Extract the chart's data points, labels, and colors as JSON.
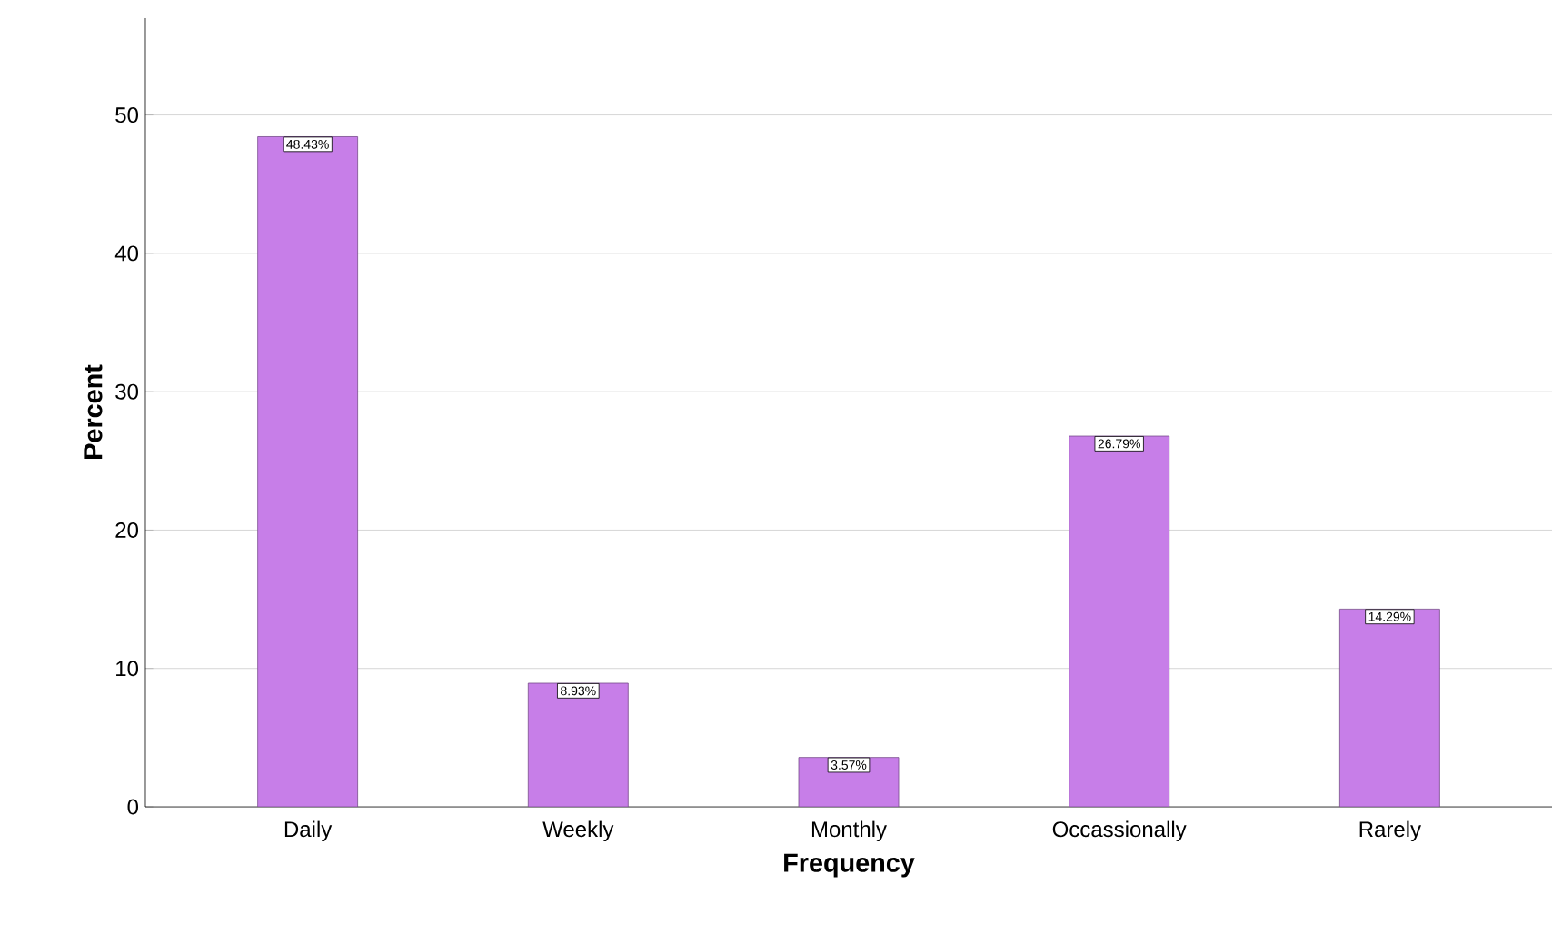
{
  "chart_data": {
    "type": "bar",
    "xlabel": "Frequency",
    "ylabel": "Percent",
    "categories": [
      "Daily",
      "Weekly",
      "Monthly",
      "Occassionally",
      "Rarely"
    ],
    "values": [
      48.43,
      8.93,
      3.57,
      26.79,
      14.29
    ],
    "value_labels": [
      "48.43%",
      "8.93%",
      "3.57%",
      "26.79%",
      "14.29%"
    ],
    "color": "#c77ee8",
    "ylim": [
      0,
      57
    ],
    "yticks": [
      0,
      10,
      20,
      30,
      40,
      50
    ],
    "grid": "y"
  }
}
